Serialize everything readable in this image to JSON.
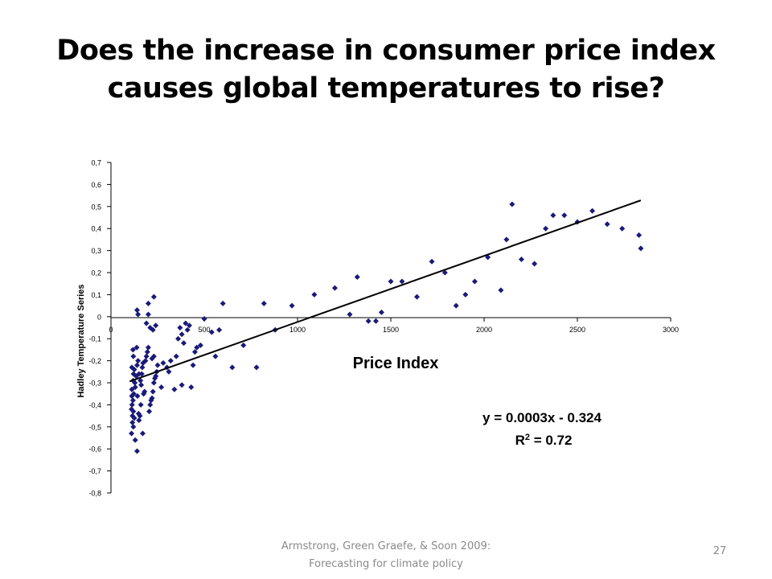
{
  "slide": {
    "title_line1": "Does the increase in consumer price index",
    "title_line2": "causes global temperatures to rise?",
    "footer_line1": "Armstrong, Green Graefe, & Soon 2009:",
    "footer_line2": "Forecasting for climate policy",
    "page_number": "27"
  },
  "chart_data": {
    "type": "scatter",
    "xlabel": "Price Index",
    "ylabel": "Hadley Temperature Series",
    "xlim": [
      0,
      3000
    ],
    "ylim": [
      -0.8,
      0.7
    ],
    "xticks": [
      "0",
      "500",
      "1000",
      "1500",
      "2000",
      "2500",
      "3000"
    ],
    "yticks": [
      "0,7",
      "0,6",
      "0,5",
      "0,4",
      "0,3",
      "0,2",
      "0,1",
      "0",
      "-0,1",
      "-0,2",
      "-0,3",
      "-0,4",
      "-0,5",
      "-0,6",
      "-0,7",
      "-0,8"
    ],
    "grid": false,
    "marker_color": "#1a1a7a",
    "trendline": {
      "slope": 0.0003,
      "intercept": -0.324,
      "x_start": 100,
      "x_end": 2840
    },
    "equation": "y = 0.0003x - 0.324",
    "r2_prefix": "R",
    "r2_sup": "2",
    "r2_suffix": " = 0.72",
    "points": [
      [
        130,
        -0.56
      ],
      [
        140,
        -0.61
      ],
      [
        120,
        -0.5
      ],
      [
        115,
        -0.45
      ],
      [
        110,
        -0.42
      ],
      [
        118,
        -0.38
      ],
      [
        122,
        -0.35
      ],
      [
        112,
        -0.33
      ],
      [
        128,
        -0.3
      ],
      [
        135,
        -0.27
      ],
      [
        125,
        -0.24
      ],
      [
        140,
        -0.22
      ],
      [
        145,
        -0.2
      ],
      [
        120,
        -0.18
      ],
      [
        118,
        -0.15
      ],
      [
        138,
        -0.14
      ],
      [
        150,
        -0.47
      ],
      [
        155,
        -0.45
      ],
      [
        148,
        -0.44
      ],
      [
        160,
        -0.4
      ],
      [
        142,
        -0.36
      ],
      [
        130,
        -0.32
      ],
      [
        158,
        -0.29
      ],
      [
        150,
        -0.26
      ],
      [
        165,
        -0.26
      ],
      [
        170,
        -0.53
      ],
      [
        175,
        -0.35
      ],
      [
        180,
        -0.34
      ],
      [
        162,
        -0.31
      ],
      [
        168,
        -0.23
      ],
      [
        172,
        -0.21
      ],
      [
        185,
        -0.2
      ],
      [
        190,
        -0.18
      ],
      [
        195,
        -0.16
      ],
      [
        200,
        -0.14
      ],
      [
        205,
        -0.43
      ],
      [
        210,
        -0.4
      ],
      [
        215,
        -0.38
      ],
      [
        220,
        -0.37
      ],
      [
        225,
        -0.34
      ],
      [
        230,
        -0.3
      ],
      [
        235,
        -0.28
      ],
      [
        240,
        -0.27
      ],
      [
        245,
        -0.25
      ],
      [
        250,
        -0.22
      ],
      [
        220,
        -0.19
      ],
      [
        230,
        -0.18
      ],
      [
        110,
        -0.53
      ],
      [
        115,
        -0.48
      ],
      [
        113,
        -0.4
      ],
      [
        112,
        -0.36
      ],
      [
        125,
        -0.46
      ],
      [
        120,
        -0.43
      ],
      [
        119,
        -0.29
      ],
      [
        121,
        -0.26
      ],
      [
        112,
        -0.23
      ],
      [
        140,
        0.03
      ],
      [
        145,
        0.01
      ],
      [
        200,
        0.06
      ],
      [
        230,
        0.09
      ],
      [
        200,
        0.01
      ],
      [
        190,
        -0.03
      ],
      [
        210,
        -0.05
      ],
      [
        240,
        -0.04
      ],
      [
        225,
        -0.06
      ],
      [
        270,
        -0.32
      ],
      [
        280,
        -0.21
      ],
      [
        300,
        -0.23
      ],
      [
        310,
        -0.25
      ],
      [
        320,
        -0.2
      ],
      [
        340,
        -0.33
      ],
      [
        350,
        -0.18
      ],
      [
        360,
        -0.1
      ],
      [
        370,
        -0.05
      ],
      [
        380,
        -0.08
      ],
      [
        390,
        -0.12
      ],
      [
        400,
        -0.03
      ],
      [
        410,
        -0.06
      ],
      [
        380,
        -0.31
      ],
      [
        420,
        -0.04
      ],
      [
        430,
        -0.32
      ],
      [
        440,
        -0.22
      ],
      [
        450,
        -0.16
      ],
      [
        460,
        -0.14
      ],
      [
        480,
        -0.13
      ],
      [
        500,
        -0.01
      ],
      [
        540,
        -0.07
      ],
      [
        560,
        -0.18
      ],
      [
        580,
        -0.06
      ],
      [
        600,
        0.06
      ],
      [
        650,
        -0.23
      ],
      [
        710,
        -0.13
      ],
      [
        780,
        -0.23
      ],
      [
        820,
        0.06
      ],
      [
        880,
        -0.06
      ],
      [
        970,
        0.05
      ],
      [
        1090,
        0.1
      ],
      [
        1200,
        0.13
      ],
      [
        1280,
        0.01
      ],
      [
        1320,
        0.18
      ],
      [
        1380,
        -0.02
      ],
      [
        1420,
        -0.02
      ],
      [
        1450,
        0.02
      ],
      [
        1500,
        0.16
      ],
      [
        1560,
        0.16
      ],
      [
        1640,
        0.09
      ],
      [
        1720,
        0.25
      ],
      [
        1790,
        0.2
      ],
      [
        1850,
        0.05
      ],
      [
        1900,
        0.1
      ],
      [
        1950,
        0.16
      ],
      [
        2020,
        0.27
      ],
      [
        2090,
        0.12
      ],
      [
        2120,
        0.35
      ],
      [
        2150,
        0.51
      ],
      [
        2200,
        0.26
      ],
      [
        2270,
        0.24
      ],
      [
        2330,
        0.4
      ],
      [
        2370,
        0.46
      ],
      [
        2430,
        0.46
      ],
      [
        2500,
        0.43
      ],
      [
        2580,
        0.48
      ],
      [
        2660,
        0.42
      ],
      [
        2740,
        0.4
      ],
      [
        2830,
        0.37
      ],
      [
        2840,
        0.31
      ]
    ]
  }
}
